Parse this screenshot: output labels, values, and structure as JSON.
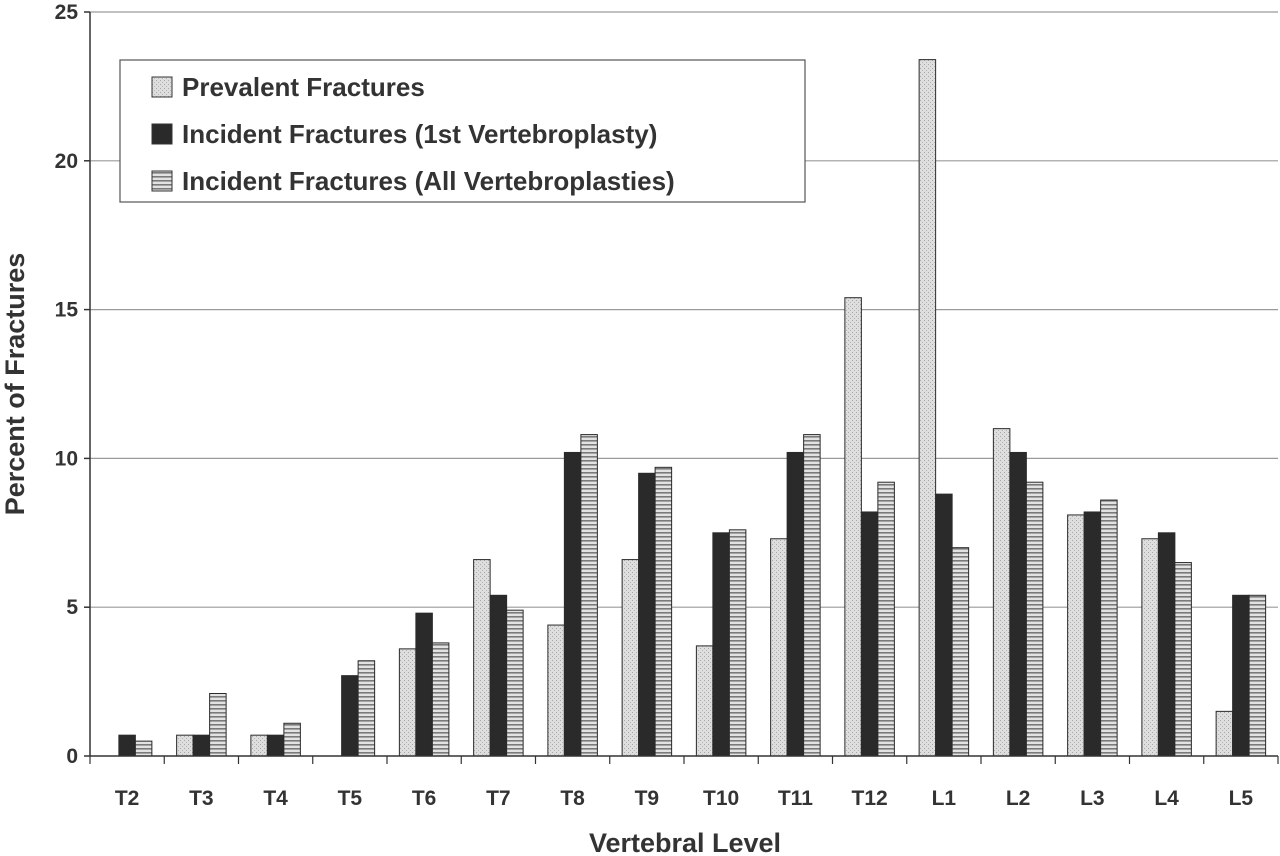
{
  "chart_data": {
    "type": "bar",
    "title": "",
    "xlabel": "Vertebral Level",
    "ylabel": "Percent of Fractures",
    "ylim": [
      0,
      25
    ],
    "yticks": [
      0,
      5,
      10,
      15,
      20,
      25
    ],
    "grid": true,
    "legend_position": "top-left",
    "categories": [
      "T2",
      "T3",
      "T4",
      "T5",
      "T6",
      "T7",
      "T8",
      "T9",
      "T10",
      "T11",
      "T12",
      "L1",
      "L2",
      "L3",
      "L4",
      "L5"
    ],
    "series": [
      {
        "name": "Prevalent Fractures",
        "pattern": "stippled-light",
        "values": [
          0,
          0.7,
          0.7,
          0,
          3.6,
          6.6,
          4.4,
          6.6,
          3.7,
          7.3,
          15.4,
          23.4,
          11.0,
          8.1,
          7.3,
          1.5
        ]
      },
      {
        "name": "Incident Fractures (1st Vertebroplasty)",
        "pattern": "solid-dark",
        "values": [
          0.7,
          0.7,
          0.7,
          2.7,
          4.8,
          5.4,
          10.2,
          9.5,
          7.5,
          10.2,
          8.2,
          8.8,
          10.2,
          8.2,
          7.5,
          5.4
        ]
      },
      {
        "name": "Incident Fractures (All Vertebroplasties)",
        "pattern": "horizontal-stripes",
        "values": [
          0.5,
          2.1,
          1.1,
          3.2,
          3.8,
          4.9,
          10.8,
          9.7,
          7.6,
          10.8,
          9.2,
          7.0,
          9.2,
          8.6,
          6.5,
          5.4
        ]
      }
    ]
  },
  "colors": {
    "prevalent_fill": "#d4d4d4",
    "incident_first_fill": "#2a2a2a",
    "incident_all_fill": "#c8c8c8",
    "stripe": "#7a7a7a",
    "gridline": "#9a9a9a",
    "axis": "#333333",
    "text": "#333333"
  }
}
